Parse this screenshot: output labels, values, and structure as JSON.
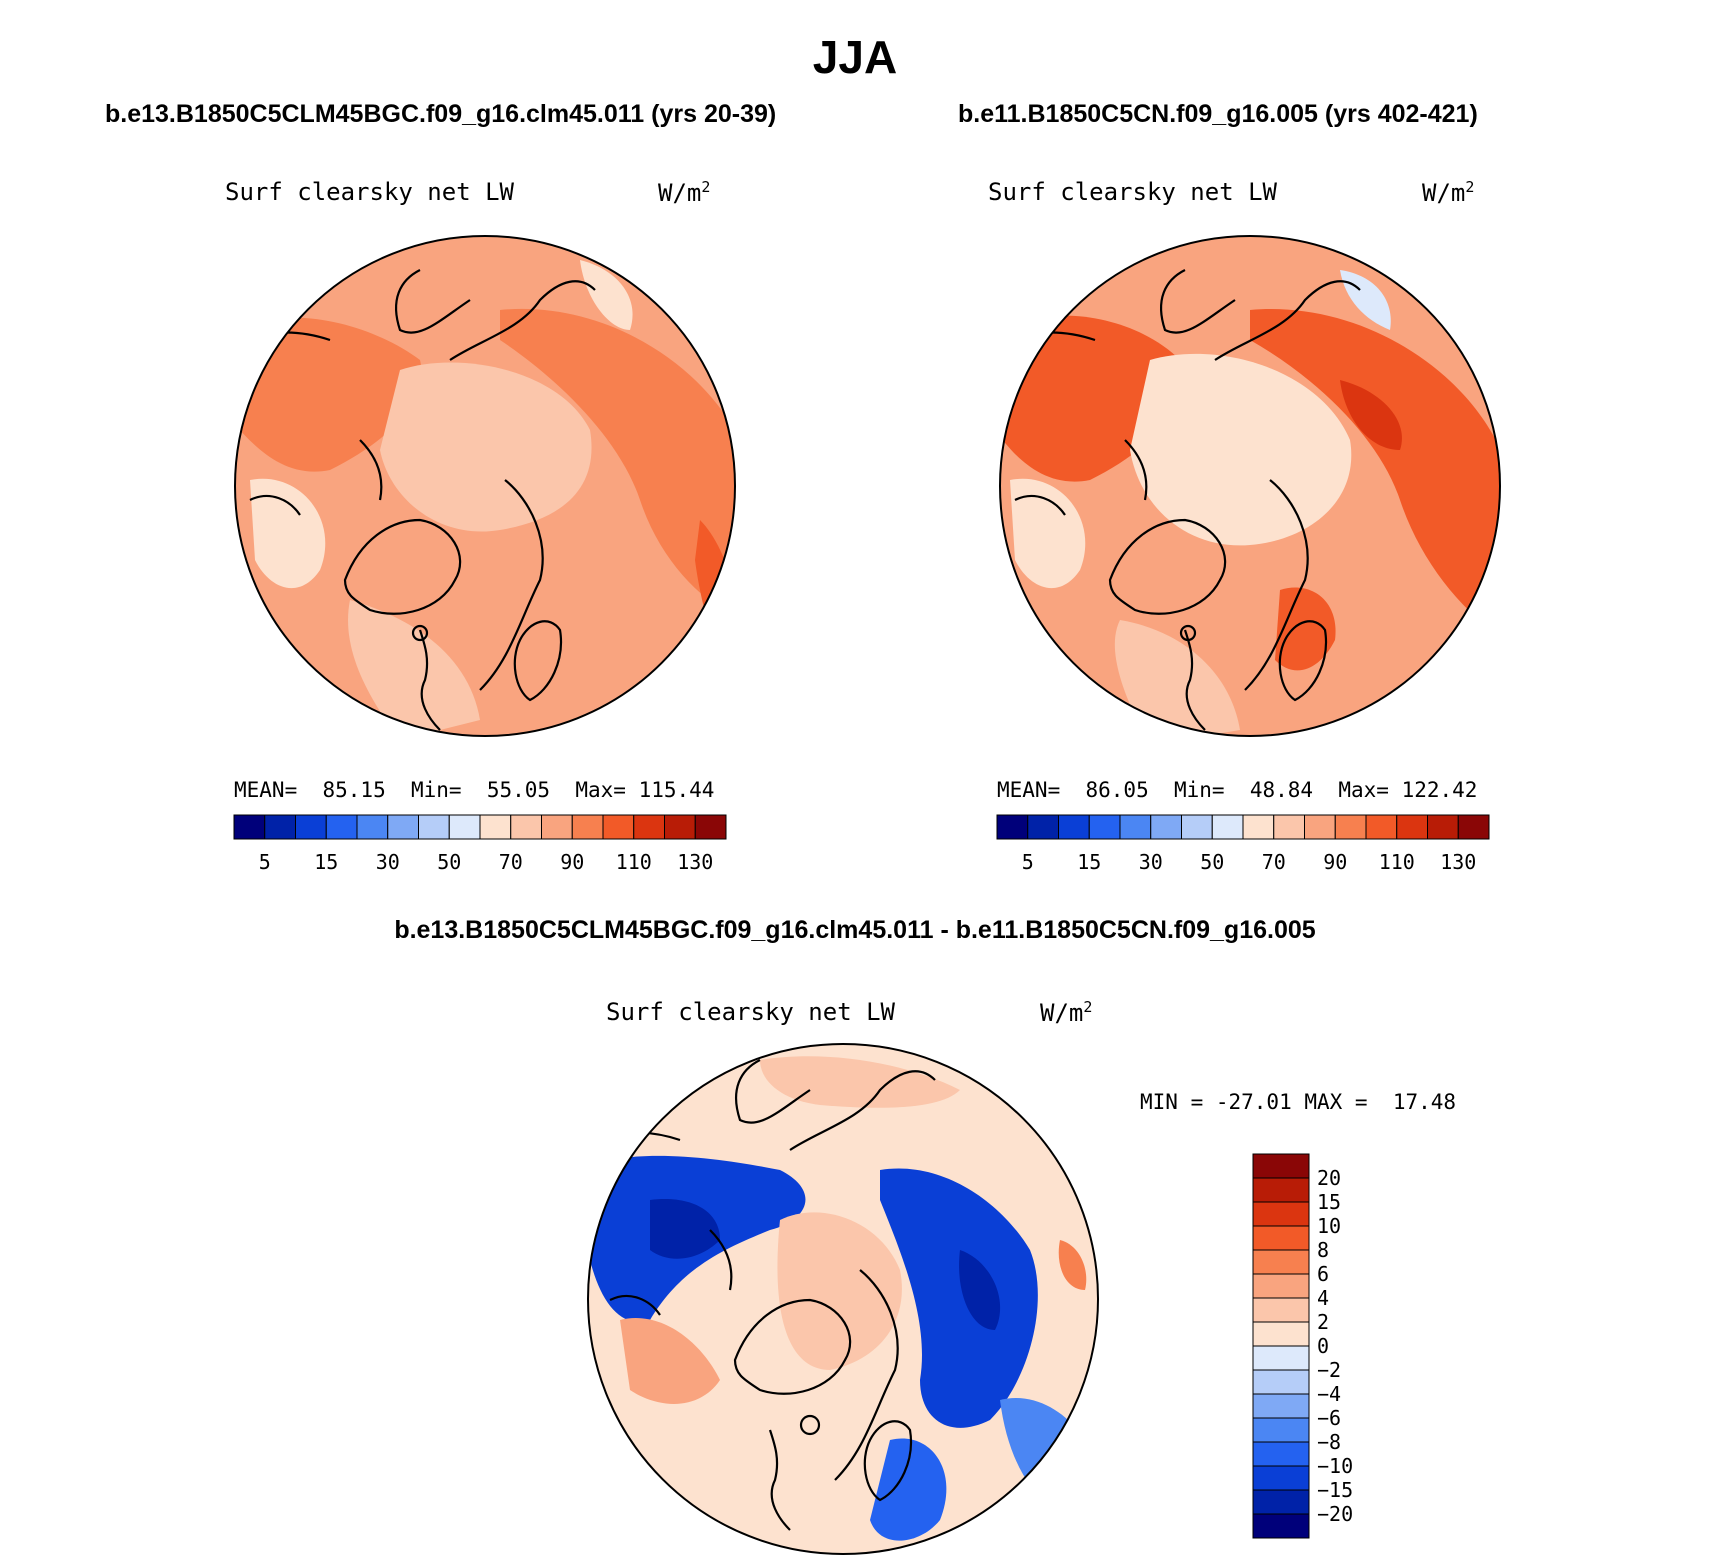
{
  "title": "JJA",
  "panels": [
    {
      "case_title": "b.e13.B1850C5CLM45BGC.f09_g16.clm45.011 (yrs 20-39)",
      "variable": "Surf clearsky net LW",
      "units": "W/m",
      "units_sup": "2",
      "stats_label": "MEAN=  85.15  Min=  55.05  Max= 115.44",
      "mean": 85.15,
      "min": 55.05,
      "max": 115.44
    },
    {
      "case_title": "b.e11.B1850C5CN.f09_g16.005 (yrs 402-421)",
      "variable": "Surf clearsky net LW",
      "units": "W/m",
      "units_sup": "2",
      "stats_label": "MEAN=  86.05  Min=  48.84  Max= 122.42",
      "mean": 86.05,
      "min": 48.84,
      "max": 122.42
    }
  ],
  "difference": {
    "title": "b.e13.B1850C5CLM45BGC.f09_g16.clm45.011 - b.e11.B1850C5CN.f09_g16.005",
    "variable": "Surf clearsky net LW",
    "units": "W/m",
    "units_sup": "2",
    "stats_label": "MIN = -27.01 MAX =  17.48",
    "min": -27.01,
    "max": 17.48
  },
  "colors": {
    "abs_colorbar": [
      "#00007a",
      "#0022a8",
      "#0a3fd6",
      "#2462f0",
      "#4b86f3",
      "#7fa9f5",
      "#b5cdf8",
      "#dde9fb",
      "#fde2cf",
      "#fbc6ab",
      "#f9a47f",
      "#f7804f",
      "#f25a28",
      "#db3510",
      "#b81c06",
      "#8a0606"
    ],
    "diff_colorbar": [
      "#00007a",
      "#0022a8",
      "#0a3fd6",
      "#2462f0",
      "#4b86f3",
      "#7fa9f5",
      "#b5cdf8",
      "#dde9fb",
      "#fde2cf",
      "#fbc6ab",
      "#f9a47f",
      "#f7804f",
      "#f25a28",
      "#db3510",
      "#b81c06",
      "#8a0606"
    ]
  },
  "chart_data": [
    {
      "type": "heatmap",
      "projection": "north polar stereographic",
      "title": "Surf clearsky net LW",
      "units": "W/m2",
      "colorbar_ticks": [
        "5",
        "15",
        "30",
        "50",
        "70",
        "90",
        "110",
        "130"
      ],
      "mean": 85.15,
      "min": 55.05,
      "max": 115.44
    },
    {
      "type": "heatmap",
      "projection": "north polar stereographic",
      "title": "Surf clearsky net LW",
      "units": "W/m2",
      "colorbar_ticks": [
        "5",
        "15",
        "30",
        "50",
        "70",
        "90",
        "110",
        "130"
      ],
      "mean": 86.05,
      "min": 48.84,
      "max": 122.42
    },
    {
      "type": "heatmap",
      "projection": "north polar stereographic",
      "title": "Surf clearsky net LW",
      "units": "W/m2",
      "colorbar_ticks": [
        "20",
        "15",
        "10",
        "8",
        "6",
        "4",
        "2",
        "0",
        "-2",
        "-4",
        "-6",
        "-8",
        "-10",
        "-15",
        "-20"
      ],
      "min": -27.01,
      "max": 17.48
    }
  ]
}
